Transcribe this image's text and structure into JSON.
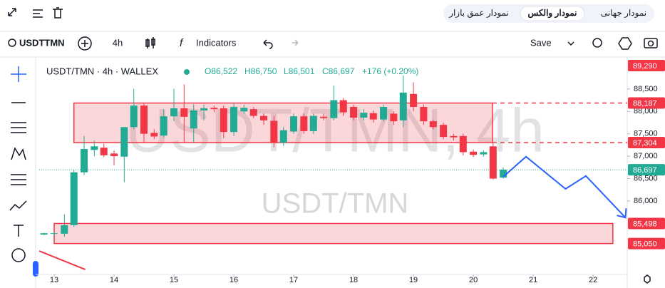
{
  "ui": {
    "tabs": [
      "نمودار جهانی",
      "نمودار والکس",
      "نمودار عمق بازار"
    ],
    "toolbar": {
      "symbol": "USDTTMN",
      "interval": "4h",
      "indicators": "Indicators",
      "save": "Save"
    }
  },
  "chart_data": {
    "type": "candlestick",
    "title": "USDT/TMN · 4h · WALLEX",
    "ohlc_text": [
      "O86,522",
      "H86,750",
      "L86,501",
      "C86,697",
      "+176 (+0.20%)"
    ],
    "watermark": [
      "USDT/TMN, 4h",
      "USDT/TMN"
    ],
    "up_color": "#22ab94",
    "down_color": "#f23645",
    "x": [
      12.83,
      13,
      13.17,
      13.33,
      13.5,
      13.67,
      13.83,
      14,
      14.17,
      14.33,
      14.5,
      14.67,
      14.83,
      15,
      15.17,
      15.33,
      15.5,
      15.67,
      15.83,
      16,
      16.17,
      16.33,
      16.5,
      16.67,
      16.83,
      17,
      17.17,
      17.33,
      17.5,
      17.67,
      17.83,
      18,
      18.17,
      18.33,
      18.5,
      18.67,
      18.83,
      19,
      19.17,
      19.33,
      19.5,
      19.67,
      19.83,
      20,
      20.17,
      20.33,
      20.5
    ],
    "open": [
      85250,
      85270,
      85270,
      85460,
      86640,
      87140,
      87190,
      87060,
      86990,
      87650,
      88130,
      87520,
      87460,
      87890,
      88070,
      87620,
      88020,
      88080,
      88070,
      87540,
      88000,
      88050,
      87900,
      87790,
      87300,
      87550,
      87890,
      87560,
      87880,
      87850,
      88250,
      88100,
      87860,
      87960,
      87820,
      87950,
      87800,
      88390,
      88100,
      87780,
      87700,
      87450,
      87450,
      87100,
      87040,
      87220,
      86522
    ],
    "high": [
      85290,
      85300,
      85700,
      86690,
      87450,
      87350,
      87280,
      87130,
      87650,
      88500,
      88180,
      87600,
      88050,
      88500,
      88600,
      88160,
      88150,
      88130,
      88130,
      88180,
      88150,
      88100,
      87950,
      87900,
      87650,
      87950,
      87950,
      87950,
      87950,
      88580,
      88300,
      88150,
      88050,
      88020,
      88150,
      88000,
      88800,
      88650,
      88150,
      87820,
      87750,
      87500,
      87500,
      87150,
      87130,
      87300,
      86750
    ],
    "low": [
      85240,
      85230,
      85200,
      85420,
      86580,
      87000,
      86980,
      86800,
      86420,
      87600,
      87300,
      87380,
      87420,
      87780,
      87300,
      87300,
      87800,
      87980,
      87400,
      87450,
      87950,
      87850,
      87700,
      87200,
      87230,
      87500,
      87500,
      87500,
      87800,
      87800,
      87900,
      87800,
      87800,
      87750,
      87780,
      87700,
      87650,
      88000,
      87700,
      87600,
      87380,
      87350,
      87020,
      86980,
      86990,
      86480,
      86501
    ],
    "close": [
      85280,
      85280,
      85460,
      86640,
      87160,
      87220,
      87020,
      87000,
      87650,
      88130,
      87500,
      87440,
      87890,
      88070,
      87880,
      88020,
      88070,
      88050,
      87540,
      88100,
      88080,
      87900,
      87800,
      87300,
      87580,
      87890,
      87560,
      87900,
      87850,
      88250,
      87980,
      87860,
      87970,
      87820,
      88100,
      87780,
      88420,
      88100,
      87780,
      87650,
      87430,
      87420,
      87090,
      87030,
      87090,
      86500,
      86697
    ],
    "xlim": [
      12.75,
      22.57
    ],
    "ylim": [
      84360,
      89150
    ],
    "xticks": [
      13,
      14,
      15,
      16,
      17,
      18,
      19,
      20,
      21,
      22
    ],
    "yticks": [
      {
        "value": 88500,
        "label": "88,500"
      },
      {
        "value": 88000,
        "label": "88,000"
      },
      {
        "value": 87500,
        "label": "87,500"
      },
      {
        "value": 87000,
        "label": "87,000"
      },
      {
        "value": 86500,
        "label": "86,500"
      },
      {
        "value": 86000,
        "label": "86,000"
      }
    ],
    "price_labels": [
      {
        "value": 89290,
        "label": "89,290",
        "color": "#f23645"
      },
      {
        "value": 88187,
        "label": "88,187",
        "color": "#f23645"
      },
      {
        "value": 87304,
        "label": "87,304",
        "color": "#f23645"
      },
      {
        "value": 86697,
        "label": "86,697",
        "color": "#22ab94"
      },
      {
        "value": 85498,
        "label": "85,498",
        "color": "#f23645"
      },
      {
        "value": 85050,
        "label": "85,050",
        "color": "#f23645"
      }
    ],
    "zones": [
      {
        "x": [
          13.33,
          20.32
        ],
        "y": [
          87304,
          88187
        ],
        "extend": true
      },
      {
        "x": [
          13,
          22.33
        ],
        "y": [
          85050,
          85498
        ],
        "extend": false
      }
    ],
    "zone_color": "#f23645",
    "arrow": {
      "x": [
        20.5,
        20.88,
        21.54,
        21.88,
        22.54
      ],
      "y": [
        86540,
        86990,
        86270,
        86560,
        85630
      ],
      "color": "#2962ff"
    },
    "trend_line": {
      "x": [
        12.75,
        13.52
      ],
      "y": [
        84885,
        84470
      ],
      "color": "#f23645"
    }
  }
}
